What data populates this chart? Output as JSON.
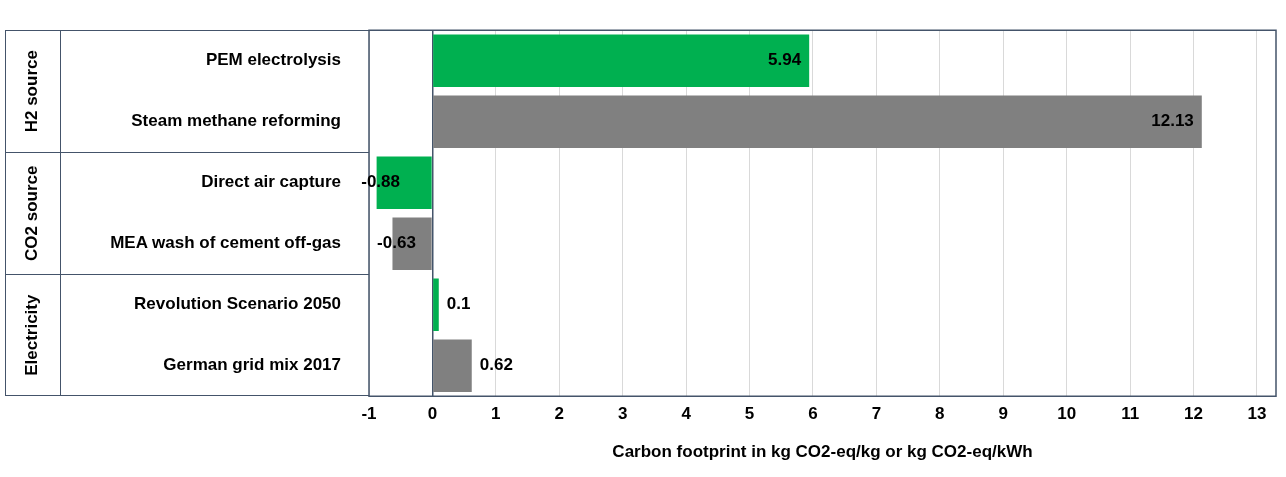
{
  "chart_data": {
    "type": "bar",
    "orientation": "horizontal",
    "xlabel": "Carbon footprint in kg CO2-eq/kg or kg CO2-eq/kWh",
    "categories": [
      "PEM electrolysis",
      "Steam methane reforming",
      "Direct air capture",
      "MEA wash of cement off-gas",
      "Revolution Scenario 2050",
      "German grid mix 2017"
    ],
    "values": [
      5.94,
      12.13,
      -0.88,
      -0.63,
      0.1,
      0.62
    ],
    "colors": [
      "#00b050",
      "#808080",
      "#00b050",
      "#808080",
      "#00b050",
      "#808080"
    ],
    "xlim": [
      -1,
      13.3
    ],
    "xticks": [
      -1,
      0,
      1,
      2,
      3,
      4,
      5,
      6,
      7,
      8,
      9,
      10,
      11,
      12,
      13
    ],
    "grid": "x",
    "data_labels": true,
    "legend": false,
    "annotations": [
      "H2 source",
      "CO2 source",
      "Electricity"
    ]
  }
}
